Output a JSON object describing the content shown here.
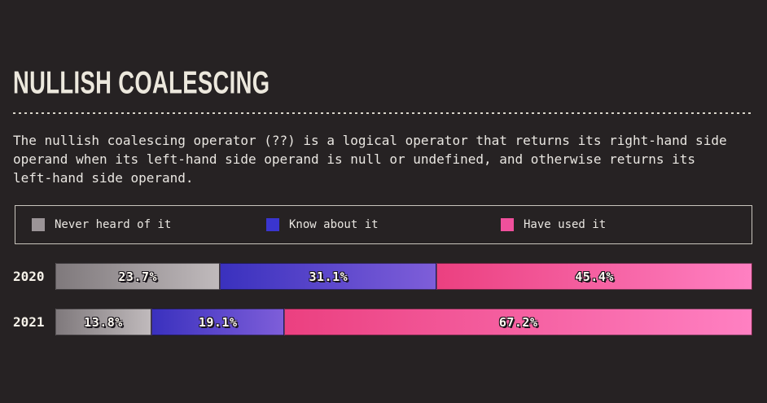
{
  "page": {
    "background_color": "#262223",
    "accent_text_color": "#ece8dd"
  },
  "header": {
    "title": "NULLISH COALESCING"
  },
  "description": "The nullish coalescing operator (??) is a logical operator that returns its right-hand side operand when its left-hand side operand is null or undefined, and otherwise returns its left-hand side operand.",
  "legend": {
    "items": [
      {
        "label": "Never heard of it",
        "swatch_color": "#9b9497"
      },
      {
        "label": "Know about it",
        "swatch_color": "#3a35cf"
      },
      {
        "label": "Have used it",
        "swatch_color": "#f0509c"
      }
    ]
  },
  "chart_data": {
    "type": "bar",
    "variant": "stacked-horizontal",
    "title": "NULLISH COALESCING",
    "unit": "%",
    "xlim": [
      0,
      100
    ],
    "grid": false,
    "legend_position": "top",
    "categories": [
      "2020",
      "2021"
    ],
    "series": [
      {
        "name": "Never heard of it",
        "values": [
          23.7,
          13.8
        ],
        "gradient_from": "#7f797c",
        "gradient_to": "#c0babc"
      },
      {
        "name": "Know about it",
        "values": [
          31.1,
          19.1
        ],
        "gradient_from": "#3a31be",
        "gradient_to": "#7e5ed9"
      },
      {
        "name": "Have used it",
        "values": [
          45.4,
          67.2
        ],
        "gradient_from": "#eb4080",
        "gradient_to": "#ff80c2"
      }
    ],
    "value_labels": [
      [
        "23.7%",
        "31.1%",
        "45.4%"
      ],
      [
        "13.8%",
        "19.1%",
        "67.2%"
      ]
    ]
  }
}
